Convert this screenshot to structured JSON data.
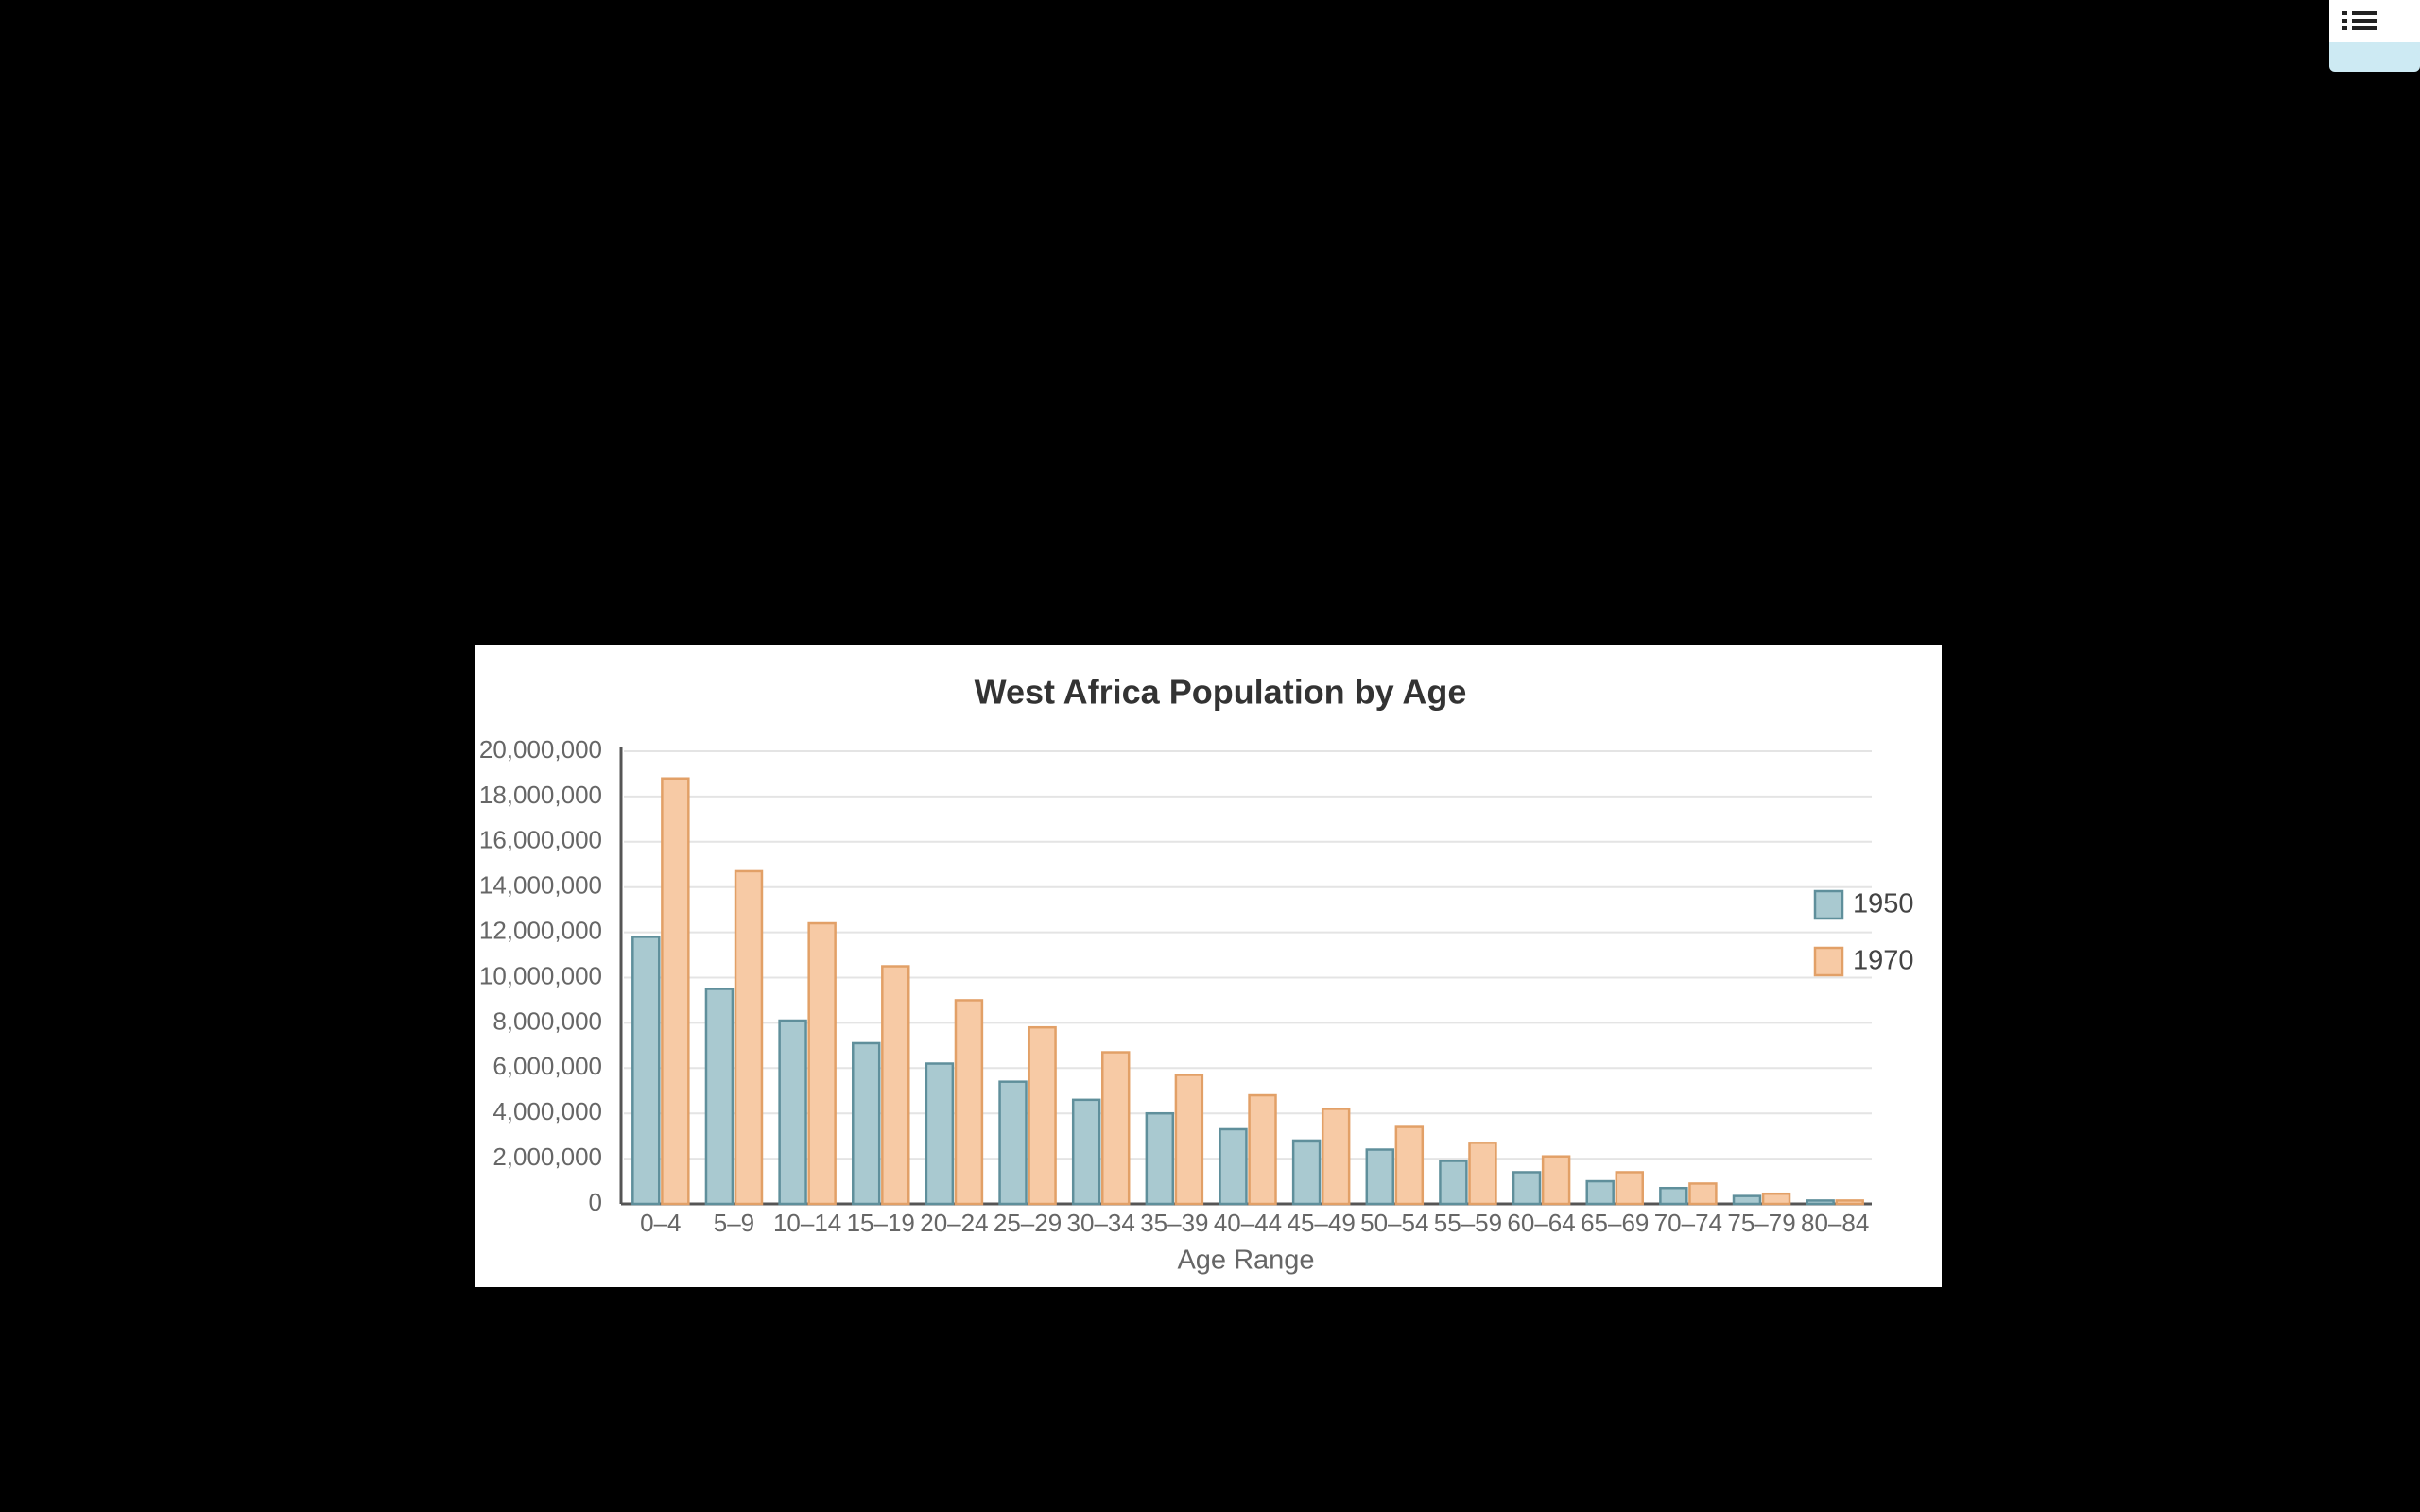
{
  "chart_data": {
    "type": "bar",
    "title": "West Africa Population by Age",
    "x_label": "Age Range",
    "categories": [
      "0–4",
      "5–9",
      "10–14",
      "15–19",
      "20–24",
      "25–29",
      "30–34",
      "35–39",
      "40–44",
      "45–49",
      "50–54",
      "55–59",
      "60–64",
      "65–69",
      "70–74",
      "75–79",
      "80–84"
    ],
    "series": [
      {
        "name": "1950",
        "color": "#a9c9d0",
        "values": [
          11800000,
          9500000,
          8100000,
          7100000,
          6200000,
          5400000,
          4600000,
          4000000,
          3300000,
          2800000,
          2400000,
          1900000,
          1400000,
          1000000,
          700000,
          350000,
          150000
        ]
      },
      {
        "name": "1970",
        "color": "#f7caa5",
        "values": [
          18800000,
          14700000,
          12400000,
          10500000,
          9000000,
          7800000,
          6700000,
          5700000,
          4800000,
          4200000,
          3400000,
          2700000,
          2100000,
          1400000,
          900000,
          450000,
          150000
        ]
      }
    ],
    "ylim": [
      0,
      20000000
    ],
    "yticks": [
      0,
      {
        "value": 2000000,
        "label": "2,000,000"
      },
      {
        "value": 4000000,
        "label": "4,000,000"
      },
      {
        "value": 6000000,
        "label": "6,000,000"
      },
      {
        "value": 8000000,
        "label": "8,000,000"
      },
      {
        "value": 10000000,
        "label": "10,000,000"
      },
      {
        "value": 12000000,
        "label": "12,000,000"
      },
      {
        "value": 14000000,
        "label": "14,000,000"
      },
      {
        "value": 16000000,
        "label": "16,000,000"
      },
      {
        "value": 18000000,
        "label": "18,000,000"
      },
      {
        "value": 20000000,
        "label": "20,000,000"
      }
    ],
    "grid": true,
    "legend": "right"
  }
}
